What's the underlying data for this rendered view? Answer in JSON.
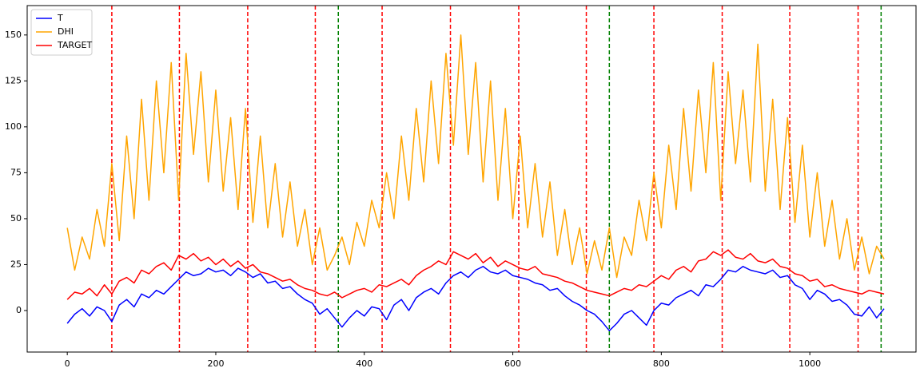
{
  "chart_data": {
    "type": "line",
    "x": [
      0,
      10,
      20,
      30,
      40,
      50,
      60,
      70,
      80,
      90,
      100,
      110,
      120,
      130,
      140,
      150,
      160,
      170,
      180,
      190,
      200,
      210,
      220,
      230,
      240,
      250,
      260,
      270,
      280,
      290,
      300,
      310,
      320,
      330,
      340,
      350,
      360,
      370,
      380,
      390,
      400,
      410,
      420,
      430,
      440,
      450,
      460,
      470,
      480,
      490,
      500,
      510,
      520,
      530,
      540,
      550,
      560,
      570,
      580,
      590,
      600,
      610,
      620,
      630,
      640,
      650,
      660,
      670,
      680,
      690,
      700,
      710,
      720,
      730,
      740,
      750,
      760,
      770,
      780,
      790,
      800,
      810,
      820,
      830,
      840,
      850,
      860,
      870,
      880,
      890,
      900,
      910,
      920,
      930,
      940,
      950,
      960,
      970,
      980,
      990,
      1000,
      1010,
      1020,
      1030,
      1040,
      1050,
      1060,
      1070,
      1080,
      1090,
      1100
    ],
    "series": [
      {
        "name": "T",
        "color": "blue",
        "values": [
          -7,
          -2,
          1,
          -3,
          2,
          0,
          -6,
          3,
          6,
          2,
          9,
          7,
          11,
          9,
          13,
          17,
          21,
          19,
          20,
          23,
          21,
          22,
          19,
          23,
          21,
          18,
          20,
          15,
          16,
          12,
          13,
          9,
          6,
          4,
          -2,
          1,
          -4,
          -9,
          -4,
          0,
          -3,
          2,
          1,
          -5,
          3,
          6,
          0,
          7,
          10,
          12,
          9,
          15,
          19,
          21,
          18,
          22,
          24,
          21,
          20,
          22,
          19,
          18,
          17,
          15,
          14,
          11,
          12,
          8,
          5,
          3,
          0,
          -2,
          -6,
          -11,
          -7,
          -2,
          0,
          -4,
          -8,
          0,
          4,
          3,
          7,
          9,
          11,
          8,
          14,
          13,
          17,
          22,
          21,
          24,
          22,
          21,
          20,
          22,
          18,
          19,
          14,
          12,
          6,
          11,
          9,
          5,
          6,
          3,
          -2,
          -3,
          2,
          -4,
          1
        ]
      },
      {
        "name": "DHI",
        "color": "orange",
        "values": [
          45,
          22,
          40,
          28,
          55,
          35,
          80,
          38,
          95,
          50,
          115,
          60,
          125,
          75,
          135,
          60,
          140,
          85,
          130,
          70,
          120,
          65,
          105,
          55,
          110,
          48,
          95,
          45,
          80,
          40,
          70,
          35,
          55,
          25,
          45,
          22,
          30,
          40,
          25,
          48,
          35,
          60,
          45,
          75,
          50,
          95,
          60,
          110,
          70,
          125,
          80,
          140,
          90,
          150,
          85,
          135,
          70,
          125,
          60,
          110,
          50,
          95,
          45,
          80,
          40,
          70,
          30,
          55,
          25,
          45,
          20,
          38,
          22,
          45,
          18,
          40,
          30,
          60,
          38,
          75,
          45,
          90,
          55,
          110,
          65,
          120,
          75,
          135,
          60,
          130,
          80,
          120,
          70,
          145,
          65,
          115,
          55,
          105,
          48,
          90,
          40,
          75,
          35,
          60,
          28,
          50,
          22,
          40,
          20,
          35,
          28
        ]
      },
      {
        "name": "TARGET",
        "color": "red",
        "values": [
          6,
          10,
          9,
          12,
          8,
          14,
          9,
          16,
          18,
          15,
          22,
          20,
          24,
          26,
          22,
          30,
          28,
          31,
          27,
          29,
          25,
          28,
          24,
          27,
          23,
          25,
          21,
          20,
          18,
          16,
          17,
          14,
          12,
          11,
          9,
          8,
          10,
          7,
          9,
          11,
          12,
          10,
          14,
          13,
          15,
          17,
          14,
          19,
          22,
          24,
          27,
          25,
          32,
          30,
          28,
          31,
          26,
          29,
          24,
          27,
          25,
          23,
          22,
          24,
          20,
          19,
          18,
          16,
          15,
          13,
          11,
          10,
          9,
          8,
          10,
          12,
          11,
          14,
          13,
          16,
          19,
          17,
          22,
          24,
          21,
          27,
          28,
          32,
          30,
          33,
          29,
          28,
          31,
          27,
          26,
          28,
          24,
          23,
          20,
          19,
          16,
          17,
          13,
          14,
          12,
          11,
          10,
          9,
          11,
          10,
          9
        ]
      }
    ],
    "vlines": [
      {
        "x": 60,
        "color": "red"
      },
      {
        "x": 151,
        "color": "red"
      },
      {
        "x": 243,
        "color": "red"
      },
      {
        "x": 334,
        "color": "red"
      },
      {
        "x": 365,
        "color": "green"
      },
      {
        "x": 424,
        "color": "red"
      },
      {
        "x": 516,
        "color": "red"
      },
      {
        "x": 608,
        "color": "red"
      },
      {
        "x": 699,
        "color": "red"
      },
      {
        "x": 730,
        "color": "green"
      },
      {
        "x": 790,
        "color": "red"
      },
      {
        "x": 882,
        "color": "red"
      },
      {
        "x": 973,
        "color": "red"
      },
      {
        "x": 1065,
        "color": "red"
      },
      {
        "x": 1096,
        "color": "green"
      }
    ],
    "xlim": [
      -54,
      1143
    ],
    "xticks": [
      0,
      200,
      400,
      600,
      800,
      1000
    ],
    "ylim": [
      -22.6,
      166
    ],
    "yticks": [
      0,
      25,
      50,
      75,
      100,
      125,
      150
    ],
    "legend": "upper left"
  }
}
